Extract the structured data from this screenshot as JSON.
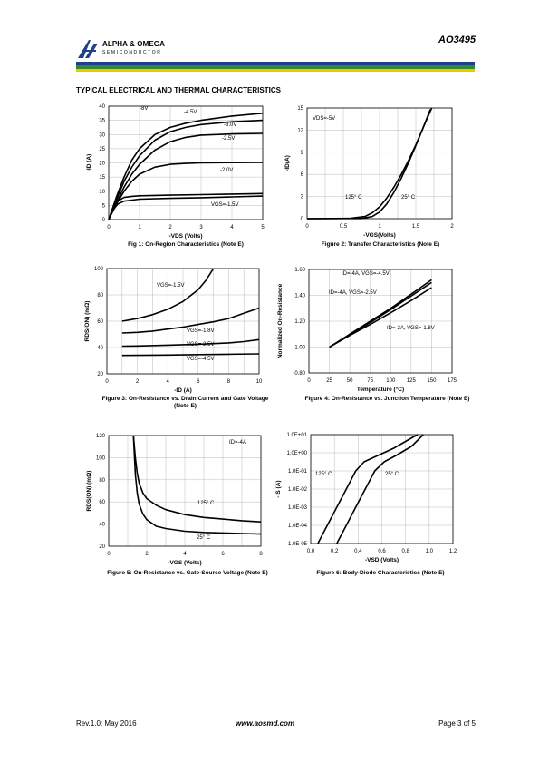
{
  "header": {
    "brand_name": "ALPHA & OMEGA",
    "brand_sub": "SEMICONDUCTOR",
    "part_number": "AO3495",
    "colors": {
      "blue": "#1f3f8f",
      "green": "#2e8b2e",
      "yellow": "#f5c400"
    }
  },
  "section_title": "TYPICAL ELECTRICAL AND THERMAL CHARACTERISTICS",
  "captions": {
    "fig1": "Fig 1: On-Region Characteristics (Note E)",
    "fig2": "Figure 2: Transfer Characteristics (Note E)",
    "fig3": "Figure 3: On-Resistance vs. Drain Current and Gate Voltage (Note E)",
    "fig4": "Figure 4: On-Resistance vs. Junction Temperature (Note E)",
    "fig5": "Figure 5: On-Resistance vs. Gate-Source Voltage (Note E)",
    "fig6": "Figure 6: Body-Diode Characteristics (Note E)"
  },
  "footer": {
    "rev": "Rev.1.0: May 2016",
    "url": "www.aosmd.com",
    "page": "Page 3 of 5"
  },
  "chart_data": [
    {
      "id": "fig1",
      "type": "line",
      "xlabel": "-VDS (Volts)",
      "ylabel": "-ID (A)",
      "xlim": [
        0,
        5
      ],
      "ylim": [
        0,
        40
      ],
      "xticks": [
        "0",
        "1",
        "2",
        "3",
        "4",
        "5"
      ],
      "yticks": [
        "0",
        "5",
        "10",
        "15",
        "20",
        "25",
        "30",
        "35",
        "40"
      ],
      "grid": true,
      "series": [
        {
          "name": "-8V",
          "x": [
            0,
            0.25,
            0.5,
            0.75,
            1,
            1.5,
            2,
            2.5,
            3,
            4,
            5
          ],
          "y": [
            0,
            8,
            15,
            21,
            25,
            30,
            32.5,
            34,
            35,
            36.5,
            37.5
          ]
        },
        {
          "name": "-4.5V",
          "x": [
            0,
            0.25,
            0.5,
            0.75,
            1,
            1.5,
            2,
            2.5,
            3,
            4,
            5
          ],
          "y": [
            0,
            7,
            13.5,
            18.5,
            22.5,
            28,
            31,
            32.5,
            33.5,
            34.5,
            35
          ]
        },
        {
          "name": "-3.0V",
          "x": [
            0,
            0.25,
            0.5,
            0.75,
            1,
            1.5,
            2,
            2.5,
            3,
            4,
            5
          ],
          "y": [
            0,
            6,
            11.5,
            16,
            19.5,
            24.5,
            27.5,
            29,
            29.8,
            30.2,
            30.4
          ]
        },
        {
          "name": "-2.5V",
          "x": [
            0,
            0.25,
            0.5,
            0.75,
            1,
            1.5,
            2,
            2.5,
            3,
            4,
            5
          ],
          "y": [
            0,
            5.5,
            10,
            13.5,
            16,
            18.5,
            19.5,
            19.8,
            20,
            20.1,
            20.2
          ]
        },
        {
          "name": "-2.0V",
          "x": [
            0,
            0.1,
            0.2,
            0.3,
            0.5,
            0.75,
            1,
            2,
            3,
            4,
            5
          ],
          "y": [
            0,
            3,
            5.2,
            6.6,
            7.8,
            8.2,
            8.4,
            8.6,
            8.8,
            9,
            9.2
          ]
        }
      ],
      "labels": [
        "-8V",
        "-4.5V",
        "-3.0V",
        "-2.5V",
        "-2.0V",
        "VGS=-1.5V"
      ]
    },
    {
      "id": "fig2",
      "type": "line",
      "xlabel": "-VGS(Volts)",
      "ylabel": "-ID(A)",
      "xlim": [
        0,
        2
      ],
      "ylim": [
        0,
        15
      ],
      "xticks": [
        "0",
        "0.5",
        "1",
        "1.5",
        "2"
      ],
      "yticks": [
        "0",
        "3",
        "6",
        "9",
        "12",
        "15"
      ],
      "grid": true,
      "series": [
        {
          "name": "125°C",
          "x": [
            0,
            0.6,
            0.8,
            0.9,
            1.0,
            1.1,
            1.2,
            1.3,
            1.4,
            1.5,
            1.6,
            1.7
          ],
          "y": [
            0,
            0.05,
            0.3,
            0.8,
            1.6,
            2.8,
            4.3,
            6.0,
            7.9,
            10.0,
            12.3,
            14.8
          ]
        },
        {
          "name": "25°C",
          "x": [
            0,
            0.75,
            0.9,
            1.0,
            1.1,
            1.2,
            1.3,
            1.4,
            1.5,
            1.6,
            1.72
          ],
          "y": [
            0,
            0.02,
            0.3,
            0.9,
            2.0,
            3.6,
            5.5,
            7.6,
            9.9,
            12.3,
            15
          ]
        }
      ],
      "labels": [
        "VDS=-5V",
        "125° C",
        "25° C"
      ]
    },
    {
      "id": "fig3",
      "type": "line",
      "xlabel": "-ID (A)",
      "ylabel": "RDS(ON) (mΩ)",
      "xlim": [
        0,
        10
      ],
      "ylim": [
        20,
        100
      ],
      "xticks": [
        "0",
        "2",
        "4",
        "6",
        "8",
        "10"
      ],
      "yticks": [
        "20",
        "40",
        "60",
        "80",
        "100"
      ],
      "grid": true,
      "series": [
        {
          "name": "VGS=-1.5V",
          "x": [
            1,
            2,
            3,
            4,
            5,
            6,
            6.5,
            7
          ],
          "y": [
            60,
            62,
            65,
            69,
            75,
            84,
            91,
            100
          ]
        },
        {
          "name": "VGS=-1.8V",
          "x": [
            1,
            2,
            3,
            4,
            5,
            6,
            7,
            8,
            9,
            10
          ],
          "y": [
            51,
            51.5,
            52.5,
            54,
            55.5,
            57.5,
            59.5,
            62,
            66,
            70
          ]
        },
        {
          "name": "VGS=-2.5V",
          "x": [
            1,
            2,
            4,
            6,
            8,
            9,
            10
          ],
          "y": [
            41,
            41.2,
            41.8,
            42.5,
            43.5,
            44.5,
            46
          ]
        },
        {
          "name": "VGS=-4.5V",
          "x": [
            1,
            2,
            4,
            6,
            8,
            10
          ],
          "y": [
            34,
            34.1,
            34.3,
            34.6,
            34.9,
            35.2
          ]
        }
      ],
      "labels": [
        "VGS=-1.5V",
        "VGS=-1.8V",
        "VGS=-2.5V",
        "VGS=-4.5V"
      ]
    },
    {
      "id": "fig4",
      "type": "line",
      "xlabel": "Temperature (°C)",
      "ylabel": "Normalized On-Resistance",
      "xlim": [
        0,
        175
      ],
      "ylim": [
        0.8,
        1.6
      ],
      "xticks": [
        "0",
        "25",
        "50",
        "75",
        "100",
        "125",
        "150",
        "175"
      ],
      "yticks": [
        "0.80",
        "1.00",
        "1.20",
        "1.40",
        "1.60"
      ],
      "grid": true,
      "series": [
        {
          "name": "ID=-4A, VGS=-4.5V",
          "x": [
            25,
            50,
            75,
            100,
            125,
            150
          ],
          "y": [
            1.0,
            1.1,
            1.2,
            1.3,
            1.41,
            1.52
          ]
        },
        {
          "name": "ID=-4A, VGS=-2.5V",
          "x": [
            25,
            50,
            75,
            100,
            125,
            150
          ],
          "y": [
            1.0,
            1.095,
            1.19,
            1.29,
            1.395,
            1.5
          ]
        },
        {
          "name": "ID=-2A, VGS=-1.8V",
          "x": [
            25,
            50,
            75,
            100,
            125,
            150
          ],
          "y": [
            1.0,
            1.09,
            1.175,
            1.265,
            1.36,
            1.46
          ]
        }
      ],
      "labels": [
        "ID=-4A, VGS=-4.5V",
        "ID=-4A, VGS=-2.5V",
        "ID=-2A, VGS=-1.8V"
      ]
    },
    {
      "id": "fig5",
      "type": "line",
      "xlabel": "-VGS (Volts)",
      "ylabel": "RDS(ON) (mΩ)",
      "xlim": [
        0,
        8
      ],
      "ylim": [
        20,
        120
      ],
      "xticks": [
        "0",
        "2",
        "4",
        "6",
        "8"
      ],
      "yticks": [
        "20",
        "40",
        "60",
        "80",
        "100",
        "120"
      ],
      "grid": true,
      "series": [
        {
          "name": "125°C",
          "x": [
            1.3,
            1.4,
            1.5,
            1.6,
            1.8,
            2,
            2.5,
            3,
            4,
            5,
            6,
            7,
            8
          ],
          "y": [
            120,
            100,
            86,
            77,
            68,
            63,
            57,
            53,
            48.5,
            46,
            44.5,
            43,
            42
          ]
        },
        {
          "name": "25°C",
          "x": [
            1.3,
            1.4,
            1.5,
            1.6,
            1.8,
            2,
            2.5,
            3,
            4,
            5,
            6,
            7,
            8
          ],
          "y": [
            120,
            85,
            68,
            58,
            49,
            44,
            38,
            36,
            33.5,
            32.5,
            32,
            31.5,
            31
          ]
        }
      ],
      "labels": [
        "ID=-4A",
        "125° C",
        "25° C"
      ]
    },
    {
      "id": "fig6",
      "type": "line",
      "xlabel": "-VSD (Volts)",
      "ylabel": "-IS (A)",
      "xlim": [
        0,
        1.2
      ],
      "ylim": [
        -5,
        1
      ],
      "yscale": "log",
      "xticks": [
        "0.0",
        "0.2",
        "0.4",
        "0.6",
        "0.8",
        "1.0",
        "1.2"
      ],
      "yticks": [
        "1.0E-05",
        "1.0E-04",
        "1.0E-03",
        "1.0E-02",
        "1.0E-01",
        "1.0E+00",
        "1.0E+01"
      ],
      "grid": true,
      "series": [
        {
          "name": "125°C",
          "x": [
            0.06,
            0.14,
            0.22,
            0.3,
            0.38,
            0.45,
            0.55,
            0.7,
            0.9
          ],
          "y": [
            -5,
            -4,
            -3,
            -2,
            -1,
            -0.5,
            -0.2,
            0.25,
            1
          ]
        },
        {
          "name": "25°C",
          "x": [
            0.22,
            0.3,
            0.38,
            0.46,
            0.54,
            0.62,
            0.72,
            0.85,
            0.95
          ],
          "y": [
            -5,
            -4,
            -3,
            -2,
            -1,
            -0.5,
            -0.15,
            0.35,
            1
          ]
        }
      ],
      "labels": [
        "125° C",
        "25° C"
      ]
    }
  ]
}
